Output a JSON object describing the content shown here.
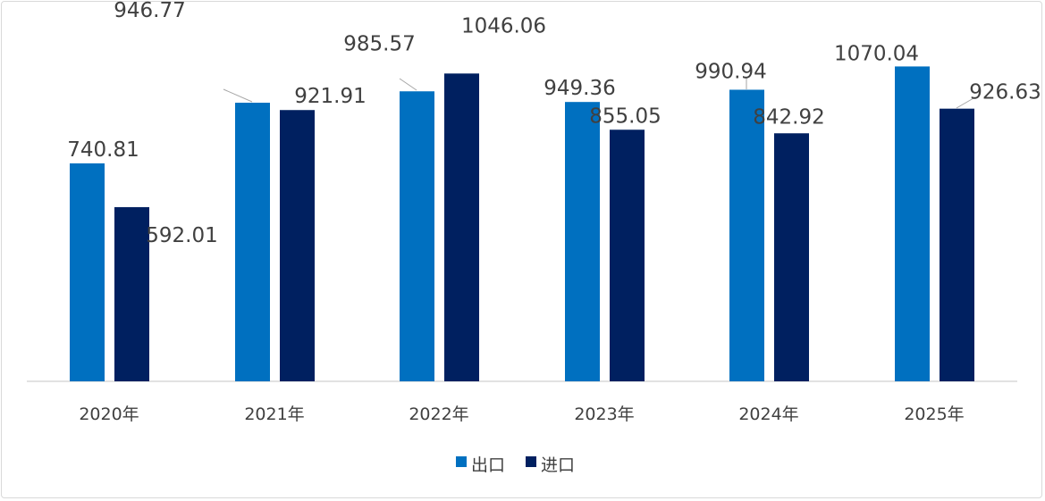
{
  "chart_data": {
    "type": "bar",
    "categories": [
      "2020年",
      "2021年",
      "2022年",
      "2023年",
      "2024年",
      "2025年"
    ],
    "series": [
      {
        "name": "出口",
        "color": "#0070C0",
        "values": [
          740.81,
          946.77,
          985.57,
          949.36,
          990.94,
          1070.04
        ]
      },
      {
        "name": "进口",
        "color": "#002060",
        "values": [
          592.01,
          921.91,
          1046.06,
          855.05,
          842.92,
          926.63
        ]
      }
    ],
    "title": "",
    "xlabel": "",
    "ylabel": "",
    "ylim": [
      0,
      1070.04
    ],
    "grid": false,
    "legend": "bottom",
    "data_labels": true
  }
}
